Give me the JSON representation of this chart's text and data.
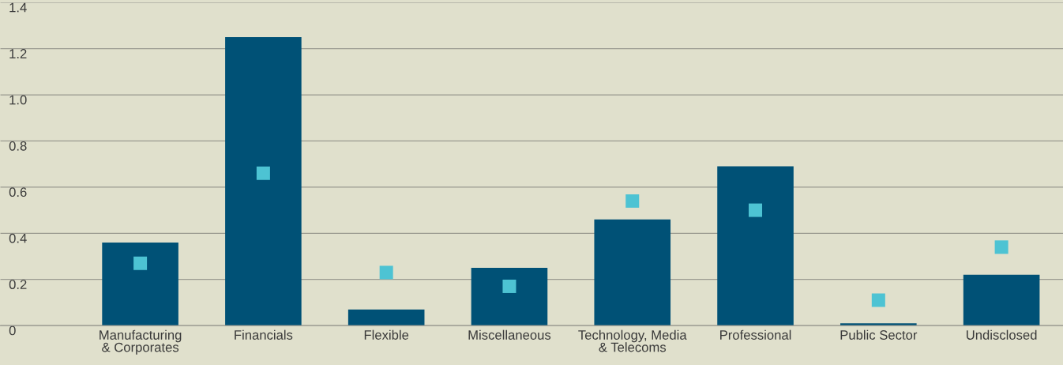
{
  "chart_data": {
    "type": "bar",
    "categories": [
      "Manufacturing\n& Corporates",
      "Financials",
      "Flexible",
      "Miscellaneous",
      "Technology, Media\n& Telecoms",
      "Professional",
      "Public Sector",
      "Undisclosed"
    ],
    "series": [
      {
        "color": "#005176",
        "values": [
          0.36,
          1.25,
          0.07,
          0.25,
          0.46,
          0.69,
          0.01,
          0.22
        ]
      },
      {
        "type": "scatter",
        "color": "#4dc3d3",
        "marker": "square",
        "values": [
          0.27,
          0.66,
          0.23,
          0.17,
          0.54,
          0.5,
          0.11,
          0.34
        ]
      }
    ],
    "ylim": [
      0,
      1.4
    ],
    "yticks": [
      0,
      {
        "value": 0.2,
        "label": "0.2"
      },
      {
        "value": 0.4,
        "label": "0.4"
      },
      {
        "value": 0.6,
        "label": "0.6"
      },
      {
        "value": 0.8,
        "label": "0.8"
      },
      {
        "value": 1.0,
        "label": "1.0"
      },
      {
        "value": 1.2,
        "label": "1.2"
      },
      {
        "value": 1.4,
        "label": "1.4"
      }
    ],
    "grid": "y",
    "legend": false
  }
}
